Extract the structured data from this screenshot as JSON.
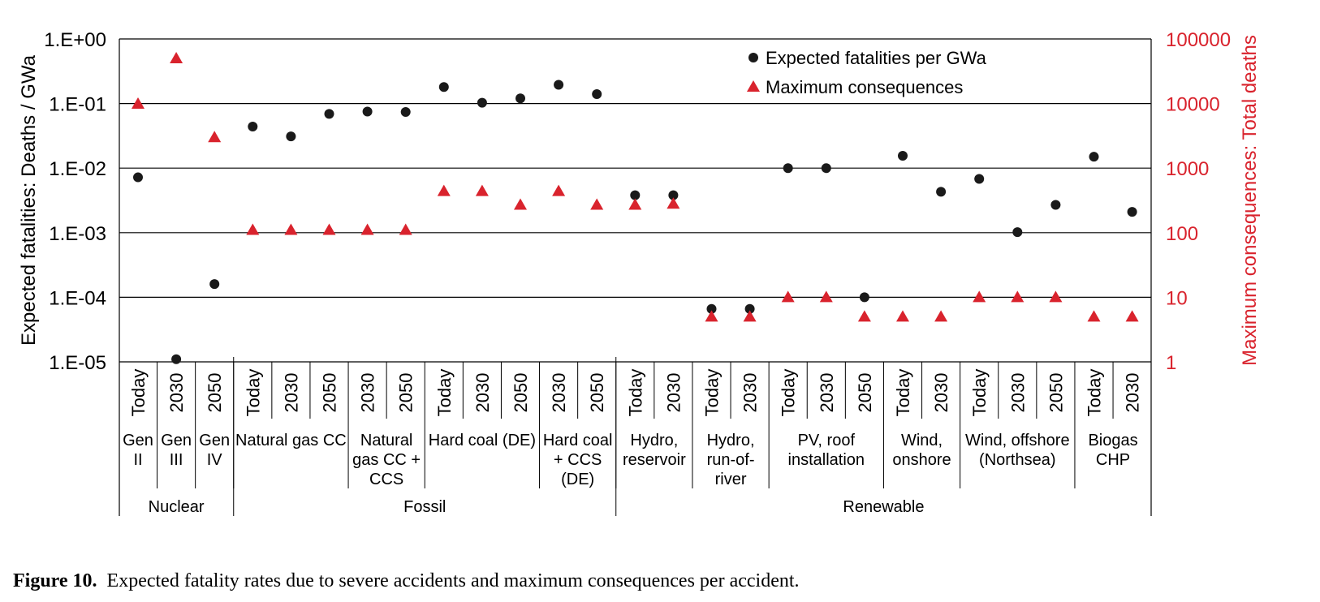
{
  "chart_data": {
    "type": "scatter",
    "left_axis": {
      "label": "Expected fatalities: Deaths / GWa",
      "scale": "log",
      "range": [
        1e-05,
        1
      ],
      "ticks": [
        {
          "value": 1,
          "label": "1.E+00"
        },
        {
          "value": 0.1,
          "label": "1.E-01"
        },
        {
          "value": 0.01,
          "label": "1.E-02"
        },
        {
          "value": 0.001,
          "label": "1.E-03"
        },
        {
          "value": 0.0001,
          "label": "1.E-04"
        },
        {
          "value": 1e-05,
          "label": "1.E-05"
        }
      ]
    },
    "right_axis": {
      "label": "Maximum consequences: Total deaths",
      "scale": "log",
      "range": [
        1,
        100000
      ],
      "color": "#d9232d",
      "ticks": [
        {
          "value": 100000,
          "label": "100000"
        },
        {
          "value": 10000,
          "label": "10000"
        },
        {
          "value": 1000,
          "label": "1000"
        },
        {
          "value": 100,
          "label": "100"
        },
        {
          "value": 10,
          "label": "10"
        },
        {
          "value": 1,
          "label": "1"
        }
      ]
    },
    "grid": "horizontal",
    "legend_position": "top-right",
    "categories": [
      "Today",
      "2030",
      "2050",
      "Today",
      "2030",
      "2050",
      "2030",
      "2050",
      "Today",
      "2030",
      "2050",
      "2030",
      "2050",
      "Today",
      "2030",
      "Today",
      "2030",
      "Today",
      "2030",
      "2050",
      "Today",
      "2030",
      "Today",
      "2030",
      "2050",
      "Today",
      "2030"
    ],
    "series": [
      {
        "name": "Expected fatalities per GWa",
        "axis": "left",
        "marker": "circle",
        "color": "#1a1a1a",
        "values": [
          0.0072,
          1.1e-05,
          0.00016,
          0.044,
          0.031,
          0.069,
          0.075,
          0.074,
          0.18,
          0.103,
          0.12,
          0.195,
          0.14,
          0.0038,
          0.0038,
          6.6e-05,
          6.6e-05,
          0.01,
          0.01,
          0.0001,
          0.0155,
          0.0043,
          0.0068,
          0.00102,
          0.0027,
          0.015,
          0.0021
        ]
      },
      {
        "name": "Maximum consequences",
        "axis": "right",
        "marker": "triangle",
        "color": "#d9232d",
        "values": [
          9900,
          50000,
          3000,
          110,
          110,
          110,
          110,
          110,
          440,
          440,
          270,
          440,
          270,
          270,
          280,
          5,
          5,
          10,
          10,
          5,
          5,
          5,
          10,
          10,
          10,
          5,
          5
        ]
      }
    ],
    "technology_groups": [
      {
        "label": "Gen II",
        "lines": [
          "Gen",
          "II"
        ],
        "span": 1
      },
      {
        "label": "Gen III",
        "lines": [
          "Gen",
          "III"
        ],
        "span": 1
      },
      {
        "label": "Gen IV",
        "lines": [
          "Gen",
          "IV"
        ],
        "span": 1
      },
      {
        "label": "Natural gas CC",
        "lines": [
          "Natural gas CC"
        ],
        "span": 3
      },
      {
        "label": "Natural gas CC + CCS",
        "lines": [
          "Natural",
          "gas CC +",
          "CCS"
        ],
        "span": 2
      },
      {
        "label": "Hard coal (DE)",
        "lines": [
          "Hard coal (DE)"
        ],
        "span": 3
      },
      {
        "label": "Hard coal + CCS (DE)",
        "lines": [
          "Hard coal",
          "+ CCS",
          "(DE)"
        ],
        "span": 2
      },
      {
        "label": "Hydro, reservoir",
        "lines": [
          "Hydro,",
          "reservoir"
        ],
        "span": 2
      },
      {
        "label": "Hydro, run-of-river",
        "lines": [
          "Hydro,",
          "run-of-",
          "river"
        ],
        "span": 2
      },
      {
        "label": "PV, roof installation",
        "lines": [
          "PV, roof",
          "installation"
        ],
        "span": 3
      },
      {
        "label": "Wind, onshore",
        "lines": [
          "Wind,",
          "onshore"
        ],
        "span": 2
      },
      {
        "label": "Wind, offshore (Northsea)",
        "lines": [
          "Wind, offshore",
          "(Northsea)"
        ],
        "span": 3
      },
      {
        "label": "Biogas CHP",
        "lines": [
          "Biogas",
          "CHP"
        ],
        "span": 2
      }
    ],
    "sectors": [
      {
        "label": "Nuclear",
        "span": 3
      },
      {
        "label": "Fossil",
        "span": 10
      },
      {
        "label": "Renewable",
        "span": 14
      }
    ]
  },
  "caption": {
    "label": "Figure 10.",
    "text": "Expected fatality rates due to severe accidents and maximum consequences per accident."
  }
}
